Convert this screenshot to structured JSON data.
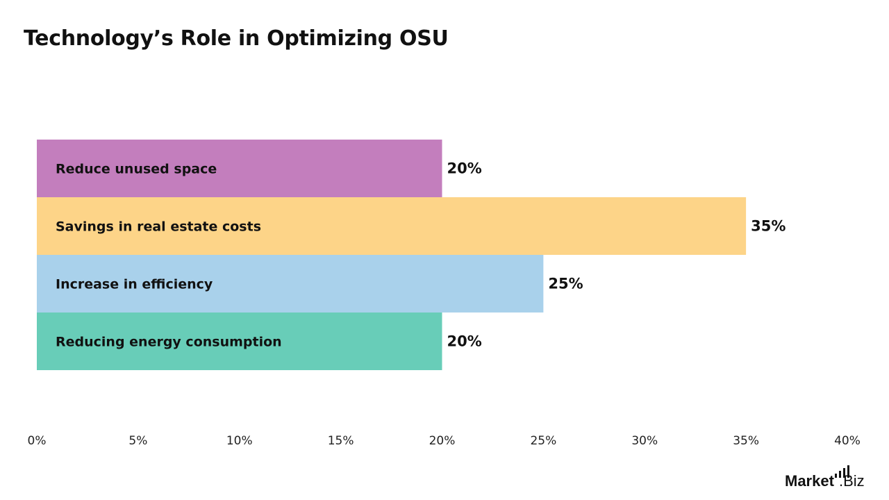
{
  "chart_data": {
    "type": "bar",
    "orientation": "horizontal",
    "title": "Technology’s Role in Optimizing OSU",
    "categories": [
      "Reduce unused space",
      "Savings in real estate costs",
      "Increase in efficiency",
      "Reducing energy consumption"
    ],
    "values": [
      20,
      35,
      25,
      20
    ],
    "data_labels": [
      "20%",
      "35%",
      "25%",
      "20%"
    ],
    "colors": [
      "#c37ebd",
      "#fdd488",
      "#a9d1eb",
      "#68cdb8"
    ],
    "xlim": [
      0,
      40
    ],
    "xticks": [
      0,
      5,
      10,
      15,
      20,
      25,
      30,
      35,
      40
    ],
    "xtick_labels": [
      "0%",
      "5%",
      "10%",
      "15%",
      "20%",
      "25%",
      "30%",
      "35%",
      "40%"
    ],
    "grid": false,
    "legend": "none"
  },
  "branding": {
    "logo_text": "Market.Biz"
  }
}
